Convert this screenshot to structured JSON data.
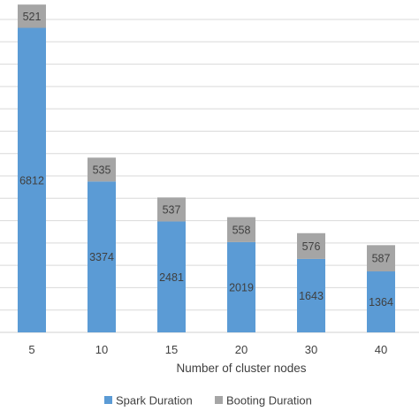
{
  "chart_data": {
    "type": "bar",
    "stacked": true,
    "categories": [
      "5",
      "10",
      "15",
      "20",
      "30",
      "40"
    ],
    "series": [
      {
        "name": "Spark Duration",
        "values": [
          6812,
          3374,
          2481,
          2019,
          1643,
          1364
        ],
        "color": "#5b9bd5"
      },
      {
        "name": "Booting Duration",
        "values": [
          521,
          535,
          537,
          558,
          576,
          587
        ],
        "color": "#a5a5a5"
      }
    ],
    "xlabel": "Number of cluster nodes",
    "ylabel": "",
    "ylim": [
      0,
      7000
    ],
    "ytick_step": 500,
    "grid": true,
    "legend_position": "bottom"
  }
}
